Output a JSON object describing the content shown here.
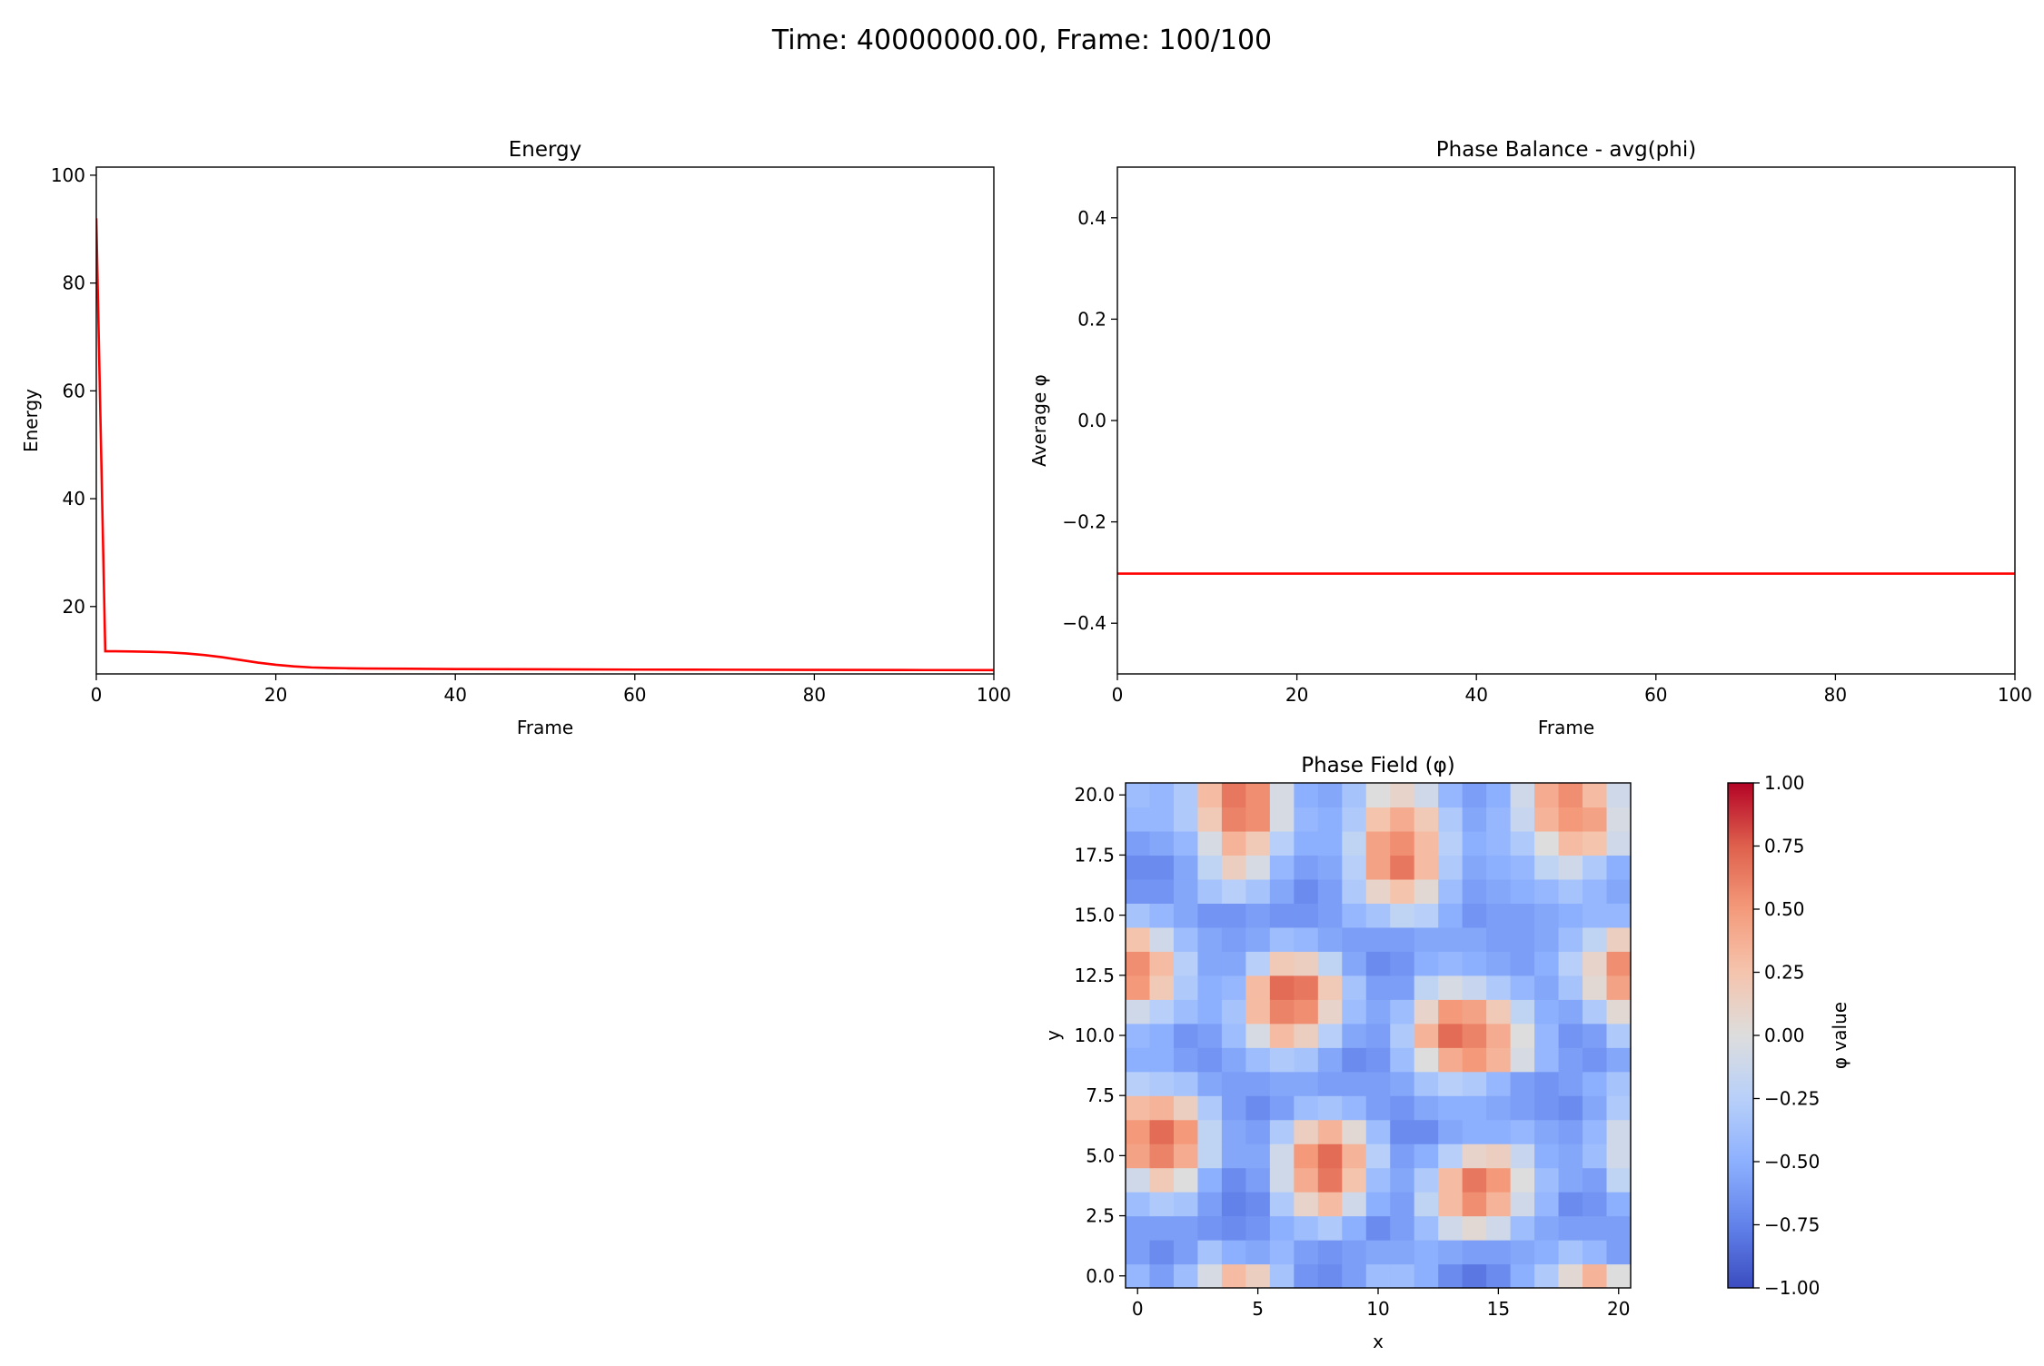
{
  "figure": {
    "suptitle": "Time: 40000000.00, Frame: 100/100"
  },
  "chart_data": [
    {
      "type": "line",
      "title": "Energy",
      "xlabel": "Frame",
      "ylabel": "Energy",
      "xlim": [
        0,
        100
      ],
      "ylim": [
        7.5,
        101.5
      ],
      "xticks": [
        0,
        20,
        40,
        60,
        80,
        100
      ],
      "yticks": [
        20,
        40,
        60,
        80,
        100
      ],
      "grid": false,
      "series": [
        {
          "color": "#ff0000",
          "x": [
            0,
            1,
            2,
            4,
            6,
            8,
            10,
            12,
            14,
            16,
            18,
            20,
            22,
            24,
            26,
            28,
            30,
            35,
            40,
            50,
            60,
            70,
            80,
            90,
            100
          ],
          "y": [
            92,
            11.7,
            11.7,
            11.65,
            11.6,
            11.5,
            11.3,
            11.0,
            10.6,
            10.1,
            9.6,
            9.2,
            8.9,
            8.7,
            8.6,
            8.55,
            8.5,
            8.45,
            8.4,
            8.35,
            8.3,
            8.28,
            8.25,
            8.22,
            8.2
          ]
        }
      ]
    },
    {
      "type": "line",
      "title": "Phase Balance - avg(phi)",
      "xlabel": "Frame",
      "ylabel": "Average φ",
      "xlim": [
        0,
        100
      ],
      "ylim": [
        -0.5,
        0.5
      ],
      "xticks": [
        0,
        20,
        40,
        60,
        80,
        100
      ],
      "yticks": [
        -0.4,
        -0.2,
        0.0,
        0.2,
        0.4
      ],
      "ytick_labels": [
        "−0.4",
        "−0.2",
        "0.0",
        "0.2",
        "0.4"
      ],
      "grid": false,
      "series": [
        {
          "color": "#ff0000",
          "x": [
            0,
            100
          ],
          "y": [
            -0.302,
            -0.302
          ]
        }
      ]
    },
    {
      "type": "heatmap",
      "title": "Phase Field (φ)",
      "xlabel": "x",
      "ylabel": "y",
      "colormap": "coolwarm",
      "vmin": -1,
      "vmax": 1,
      "colorbar_label": "φ value",
      "colorbar_ticks": [
        -1.0,
        -0.75,
        -0.5,
        -0.25,
        0.0,
        0.25,
        0.5,
        0.75,
        1.0
      ],
      "colorbar_tick_labels": [
        "−1.00",
        "−0.75",
        "−0.50",
        "−0.25",
        "0.00",
        "0.25",
        "0.50",
        "0.75",
        "1.00"
      ],
      "xticks": [
        0,
        5,
        10,
        15,
        20
      ],
      "yticks": [
        0.0,
        2.5,
        5.0,
        7.5,
        10.0,
        12.5,
        15.0,
        17.5,
        20.0
      ],
      "ytick_labels": [
        "0.0",
        "2.5",
        "5.0",
        "7.5",
        "10.0",
        "12.5",
        "15.0",
        "17.5",
        "20.0"
      ],
      "grid_rows_note": "rows listed from y=0 (bottom) to y=20 (top); 21 columns x=0..20",
      "z": [
        [
          -0.45,
          -0.6,
          -0.4,
          -0.05,
          0.3,
          0.15,
          -0.35,
          -0.65,
          -0.7,
          -0.6,
          -0.4,
          -0.4,
          -0.5,
          -0.7,
          -0.8,
          -0.7,
          -0.5,
          -0.3,
          0.05,
          0.35,
          0.0
        ],
        [
          -0.6,
          -0.7,
          -0.6,
          -0.35,
          -0.5,
          -0.55,
          -0.45,
          -0.6,
          -0.65,
          -0.6,
          -0.55,
          -0.55,
          -0.5,
          -0.55,
          -0.6,
          -0.6,
          -0.55,
          -0.5,
          -0.35,
          -0.45,
          -0.6
        ],
        [
          -0.6,
          -0.6,
          -0.6,
          -0.65,
          -0.7,
          -0.65,
          -0.5,
          -0.4,
          -0.3,
          -0.5,
          -0.7,
          -0.6,
          -0.4,
          -0.1,
          0.05,
          -0.1,
          -0.4,
          -0.55,
          -0.6,
          -0.6,
          -0.6
        ],
        [
          -0.4,
          -0.3,
          -0.35,
          -0.6,
          -0.75,
          -0.7,
          -0.3,
          0.1,
          0.3,
          -0.1,
          -0.5,
          -0.6,
          -0.2,
          0.3,
          0.55,
          0.35,
          -0.1,
          -0.45,
          -0.7,
          -0.65,
          -0.5
        ],
        [
          -0.1,
          0.2,
          0.0,
          -0.5,
          -0.7,
          -0.6,
          -0.1,
          0.4,
          0.65,
          0.25,
          -0.4,
          -0.55,
          -0.3,
          0.3,
          0.65,
          0.5,
          0.0,
          -0.4,
          -0.55,
          -0.6,
          -0.2
        ],
        [
          0.45,
          0.6,
          0.4,
          -0.2,
          -0.55,
          -0.55,
          -0.1,
          0.5,
          0.7,
          0.35,
          -0.25,
          -0.6,
          -0.5,
          -0.25,
          0.1,
          0.15,
          -0.15,
          -0.5,
          -0.55,
          -0.4,
          -0.1
        ],
        [
          0.5,
          0.7,
          0.5,
          -0.2,
          -0.55,
          -0.6,
          -0.3,
          0.15,
          0.35,
          0.05,
          -0.4,
          -0.7,
          -0.7,
          -0.55,
          -0.5,
          -0.5,
          -0.45,
          -0.55,
          -0.6,
          -0.45,
          -0.1
        ],
        [
          0.3,
          0.35,
          0.15,
          -0.3,
          -0.6,
          -0.7,
          -0.6,
          -0.4,
          -0.35,
          -0.45,
          -0.6,
          -0.65,
          -0.55,
          -0.5,
          -0.5,
          -0.55,
          -0.6,
          -0.65,
          -0.7,
          -0.55,
          -0.3
        ],
        [
          -0.25,
          -0.3,
          -0.35,
          -0.55,
          -0.6,
          -0.6,
          -0.55,
          -0.55,
          -0.6,
          -0.6,
          -0.6,
          -0.55,
          -0.35,
          -0.25,
          -0.3,
          -0.45,
          -0.6,
          -0.65,
          -0.6,
          -0.5,
          -0.35
        ],
        [
          -0.5,
          -0.5,
          -0.6,
          -0.65,
          -0.55,
          -0.4,
          -0.3,
          -0.35,
          -0.55,
          -0.7,
          -0.65,
          -0.4,
          0.0,
          0.4,
          0.5,
          0.35,
          -0.05,
          -0.45,
          -0.6,
          -0.65,
          -0.55
        ],
        [
          -0.45,
          -0.5,
          -0.65,
          -0.6,
          -0.4,
          -0.05,
          0.3,
          0.15,
          -0.25,
          -0.55,
          -0.6,
          -0.3,
          0.35,
          0.7,
          0.6,
          0.4,
          0.0,
          -0.45,
          -0.65,
          -0.6,
          -0.3
        ],
        [
          -0.1,
          -0.25,
          -0.4,
          -0.5,
          -0.35,
          0.3,
          0.6,
          0.55,
          0.1,
          -0.4,
          -0.55,
          -0.4,
          0.1,
          0.5,
          0.45,
          0.2,
          -0.2,
          -0.5,
          -0.55,
          -0.3,
          0.05
        ],
        [
          0.5,
          0.2,
          -0.3,
          -0.5,
          -0.45,
          0.3,
          0.7,
          0.65,
          0.2,
          -0.35,
          -0.6,
          -0.6,
          -0.2,
          -0.05,
          -0.15,
          -0.3,
          -0.45,
          -0.55,
          -0.35,
          0.05,
          0.45
        ],
        [
          0.55,
          0.3,
          -0.25,
          -0.55,
          -0.55,
          -0.25,
          0.2,
          0.15,
          -0.2,
          -0.55,
          -0.7,
          -0.65,
          -0.5,
          -0.45,
          -0.5,
          -0.55,
          -0.6,
          -0.5,
          -0.25,
          0.1,
          0.55
        ],
        [
          0.25,
          -0.1,
          -0.4,
          -0.55,
          -0.6,
          -0.55,
          -0.4,
          -0.45,
          -0.55,
          -0.6,
          -0.6,
          -0.6,
          -0.55,
          -0.55,
          -0.55,
          -0.6,
          -0.6,
          -0.55,
          -0.4,
          -0.2,
          0.15
        ],
        [
          -0.35,
          -0.45,
          -0.55,
          -0.65,
          -0.65,
          -0.6,
          -0.65,
          -0.65,
          -0.6,
          -0.45,
          -0.35,
          -0.2,
          -0.25,
          -0.5,
          -0.65,
          -0.6,
          -0.6,
          -0.55,
          -0.5,
          -0.45,
          -0.45
        ],
        [
          -0.65,
          -0.65,
          -0.55,
          -0.35,
          -0.25,
          -0.35,
          -0.55,
          -0.7,
          -0.6,
          -0.3,
          0.1,
          0.25,
          0.05,
          -0.4,
          -0.6,
          -0.55,
          -0.5,
          -0.45,
          -0.35,
          -0.45,
          -0.55
        ],
        [
          -0.7,
          -0.7,
          -0.55,
          -0.2,
          0.15,
          -0.05,
          -0.45,
          -0.6,
          -0.55,
          -0.25,
          0.45,
          0.65,
          0.3,
          -0.3,
          -0.55,
          -0.5,
          -0.45,
          -0.2,
          -0.1,
          -0.3,
          -0.5
        ],
        [
          -0.6,
          -0.55,
          -0.45,
          -0.05,
          0.35,
          0.2,
          -0.25,
          -0.5,
          -0.5,
          -0.2,
          0.45,
          0.55,
          0.3,
          -0.25,
          -0.5,
          -0.45,
          -0.3,
          0.0,
          0.3,
          0.25,
          -0.1
        ],
        [
          -0.45,
          -0.45,
          -0.3,
          0.2,
          0.6,
          0.55,
          -0.05,
          -0.45,
          -0.5,
          -0.3,
          0.25,
          0.4,
          0.2,
          -0.3,
          -0.55,
          -0.45,
          -0.15,
          0.35,
          0.5,
          0.45,
          -0.05
        ],
        [
          -0.4,
          -0.45,
          -0.3,
          0.3,
          0.65,
          0.55,
          -0.05,
          -0.5,
          -0.55,
          -0.35,
          0.0,
          0.1,
          -0.1,
          -0.45,
          -0.6,
          -0.5,
          -0.1,
          0.4,
          0.55,
          0.3,
          -0.1
        ]
      ]
    }
  ]
}
